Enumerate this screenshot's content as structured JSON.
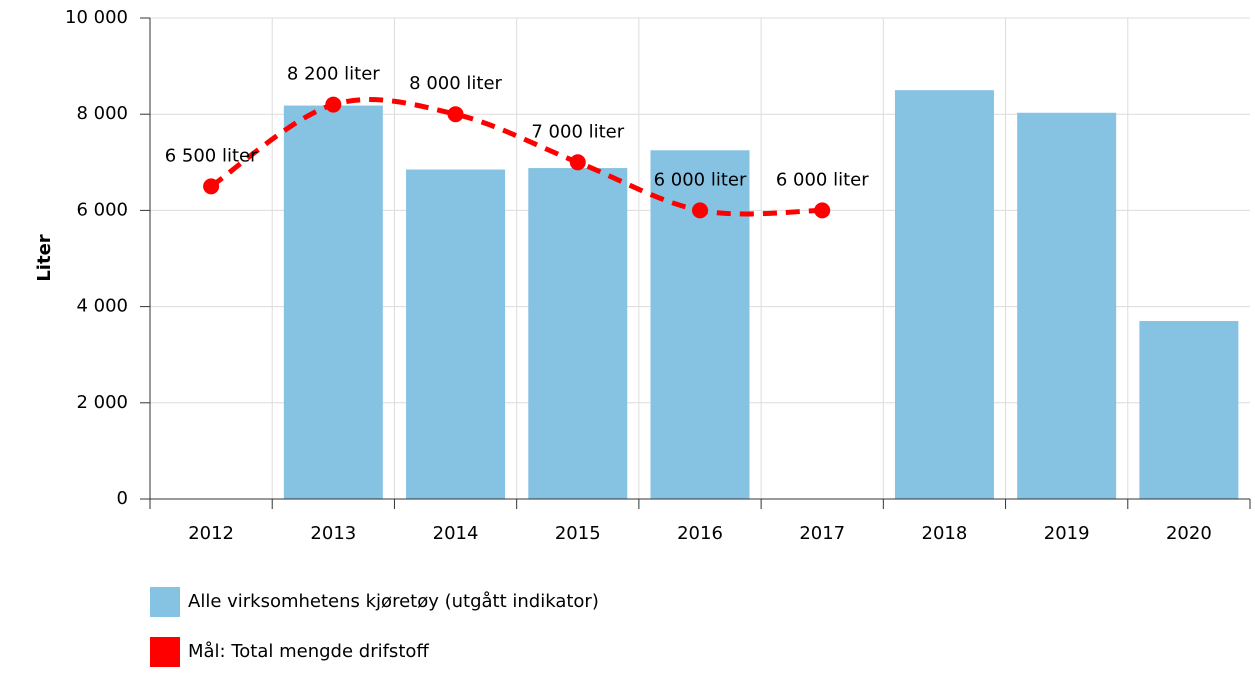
{
  "chart_data": {
    "type": "bar",
    "y_label": "Liter",
    "categories": [
      "2012",
      "2013",
      "2014",
      "2015",
      "2016",
      "2017",
      "2018",
      "2019",
      "2020"
    ],
    "series": [
      {
        "name": "Alle virksomhetens kjøretøy (utgått indikator)",
        "type": "bar",
        "color": "#86c3e3",
        "values": [
          null,
          8180,
          6850,
          6880,
          7250,
          null,
          8500,
          8030,
          3700
        ]
      },
      {
        "name": "Mål: Total mengde drifstoff",
        "type": "line",
        "color": "#ff0000",
        "dashed": true,
        "smooth": true,
        "values": [
          6500,
          8200,
          8000,
          7000,
          6000,
          6000,
          null,
          null,
          null
        ],
        "value_labels": [
          "6 500 liter",
          "8 200 liter",
          "8 000 liter",
          "7 000 liter",
          "6 000 liter",
          "6 000 liter",
          null,
          null,
          null
        ]
      }
    ],
    "ylim": [
      0,
      10000
    ],
    "yticks": [
      0,
      {
        "value": 2000,
        "label": "2 000"
      },
      {
        "value": 4000,
        "label": "4 000"
      },
      {
        "value": 6000,
        "label": "6 000"
      },
      {
        "value": 8000,
        "label": "8 000"
      },
      {
        "value": 10000,
        "label": "10 000"
      }
    ],
    "grid": true,
    "legend": "bottom"
  }
}
